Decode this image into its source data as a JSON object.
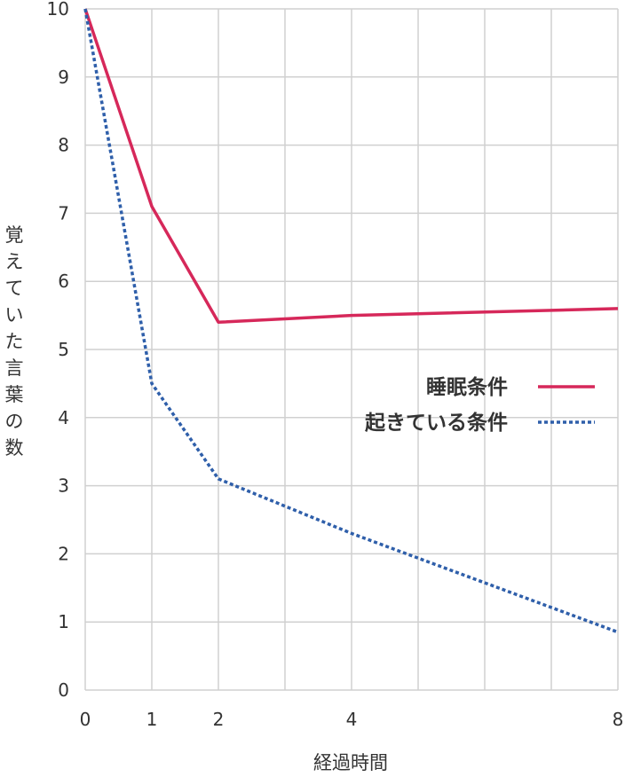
{
  "chart_data": {
    "type": "line",
    "xlabel": "経過時間",
    "ylabel": "覚えていた言葉の数",
    "xlim": [
      0,
      8
    ],
    "ylim": [
      0,
      10
    ],
    "x_gridlines": [
      0,
      1,
      2,
      3,
      4,
      5,
      6,
      7,
      8
    ],
    "x_tick_labels": [
      "0",
      "1",
      "2",
      "4",
      "8"
    ],
    "x_tick_positions": [
      0,
      1,
      2,
      4,
      8
    ],
    "y_ticks": [
      0,
      1,
      2,
      3,
      4,
      5,
      6,
      7,
      8,
      9,
      10
    ],
    "grid": true,
    "legend_position": "right",
    "series": [
      {
        "name": "睡眠条件",
        "color": "#d6285a",
        "style": "solid",
        "points": [
          [
            0,
            10
          ],
          [
            1,
            7.1
          ],
          [
            2,
            5.4
          ],
          [
            4,
            5.5
          ],
          [
            8,
            5.6
          ]
        ]
      },
      {
        "name": "起きている条件",
        "color": "#2f5faa",
        "style": "dotted",
        "points": [
          [
            0,
            10
          ],
          [
            1,
            4.5
          ],
          [
            2,
            3.1
          ],
          [
            4,
            2.3
          ],
          [
            8,
            0.85
          ]
        ]
      }
    ]
  }
}
